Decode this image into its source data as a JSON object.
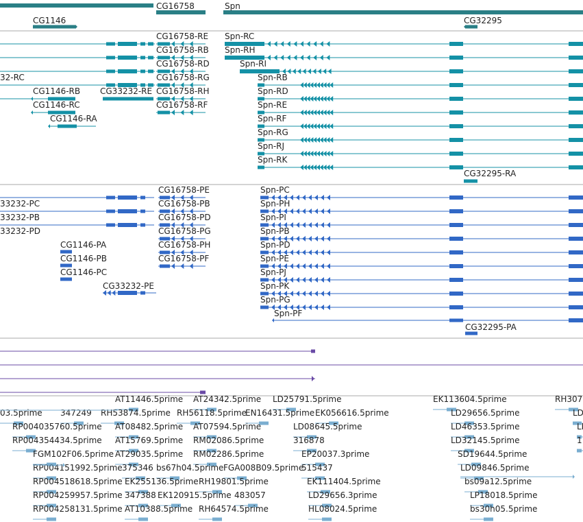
{
  "colors": {
    "gene": "#2a7f86",
    "mrna": "#1491a6",
    "protein": "#3168c6",
    "purple": "#6a4aa6",
    "est": "#7aaed0",
    "sep": "#a9a9a9"
  },
  "genes": [
    {
      "label": "CG16758"
    },
    {
      "label": "Spn"
    },
    {
      "label": "CG1146"
    },
    {
      "label": "CG32295"
    }
  ],
  "transcripts": [
    {
      "label": "CG16758-RE"
    },
    {
      "label": "Spn-RC"
    },
    {
      "label": "CG16758-RB"
    },
    {
      "label": "Spn-RH"
    },
    {
      "label": "CG16758-RD"
    },
    {
      "label": "Spn-RI"
    },
    {
      "label": "32-RC"
    },
    {
      "label": "CG16758-RG"
    },
    {
      "label": "Spn-RB"
    },
    {
      "label": "CG1146-RB"
    },
    {
      "label": "CG33232-RE"
    },
    {
      "label": "CG16758-RH"
    },
    {
      "label": "Spn-RD"
    },
    {
      "label": "CG1146-RC"
    },
    {
      "label": "CG16758-RF"
    },
    {
      "label": "Spn-RE"
    },
    {
      "label": "CG1146-RA"
    },
    {
      "label": "Spn-RF"
    },
    {
      "label": "Spn-RG"
    },
    {
      "label": "Spn-RJ"
    },
    {
      "label": "Spn-RK"
    },
    {
      "label": "CG32295-RA"
    }
  ],
  "proteins": [
    {
      "label": "CG16758-PE"
    },
    {
      "label": "Spn-PC"
    },
    {
      "label": "33232-PC"
    },
    {
      "label": "CG16758-PB"
    },
    {
      "label": "Spn-PH"
    },
    {
      "label": "33232-PB"
    },
    {
      "label": "CG16758-PD"
    },
    {
      "label": "Spn-PI"
    },
    {
      "label": "33232-PD"
    },
    {
      "label": "CG16758-PG"
    },
    {
      "label": "Spn-PB"
    },
    {
      "label": "CG1146-PA"
    },
    {
      "label": "CG16758-PH"
    },
    {
      "label": "Spn-PD"
    },
    {
      "label": "CG1146-PB"
    },
    {
      "label": "CG16758-PF"
    },
    {
      "label": "Spn-PE"
    },
    {
      "label": "CG1146-PC"
    },
    {
      "label": "Spn-PJ"
    },
    {
      "label": "CG33232-PE"
    },
    {
      "label": "Spn-PK"
    },
    {
      "label": "Spn-PG"
    },
    {
      "label": "Spn-PF"
    },
    {
      "label": "CG32295-PA"
    }
  ],
  "ests": [
    {
      "label": "AT11446.5prime"
    },
    {
      "label": "AT24342.5prime"
    },
    {
      "label": "LD25791.5prime"
    },
    {
      "label": "EK113604.5prime"
    },
    {
      "label": "RH307"
    },
    {
      "label": "03.5prime"
    },
    {
      "label": "347249"
    },
    {
      "label": "RH53874.5prime"
    },
    {
      "label": "RH56118.5prime"
    },
    {
      "label": "EN16431.5prime"
    },
    {
      "label": "EK056616.5prime"
    },
    {
      "label": "LD29656.5prime"
    },
    {
      "label": "LD"
    },
    {
      "label": "RP004035760.5prime"
    },
    {
      "label": "AT08482.5prime"
    },
    {
      "label": "AT07594.5prime"
    },
    {
      "label": "LD08645.5prime"
    },
    {
      "label": "LD46353.5prime"
    },
    {
      "label": "LD"
    },
    {
      "label": "RP004354434.5prime"
    },
    {
      "label": "AT15769.5prime"
    },
    {
      "label": "RM02086.5prime"
    },
    {
      "label": "316878"
    },
    {
      "label": "LD32145.5prime"
    },
    {
      "label": "1"
    },
    {
      "label": "FGM102F06.5prime"
    },
    {
      "label": "AT29035.5prime"
    },
    {
      "label": "RM02286.5prime"
    },
    {
      "label": "EP20037.3prime"
    },
    {
      "label": "SD19644.5prime"
    },
    {
      "label": "RP004151992.5prime"
    },
    {
      "label": "375346"
    },
    {
      "label": "bs67h04.5prime"
    },
    {
      "label": "FGA008B09.5prime"
    },
    {
      "label": "515437"
    },
    {
      "label": "LD09846.5prime"
    },
    {
      "label": "RP004518618.5prime"
    },
    {
      "label": "EK255136.5prime"
    },
    {
      "label": "RH19801.5prime"
    },
    {
      "label": "EK111404.5prime"
    },
    {
      "label": "bs09a12.5prime"
    },
    {
      "label": "RP004259957.5prime"
    },
    {
      "label": "347388"
    },
    {
      "label": "EK120915.5prime"
    },
    {
      "label": "483057"
    },
    {
      "label": "LD29656.3prime"
    },
    {
      "label": "LP18018.5prime"
    },
    {
      "label": "RP004258131.5prime"
    },
    {
      "label": "AT10388.5prime"
    },
    {
      "label": "RH64574.5prime"
    },
    {
      "label": "HL08024.5prime"
    },
    {
      "label": "bs30h05.5prime"
    }
  ]
}
